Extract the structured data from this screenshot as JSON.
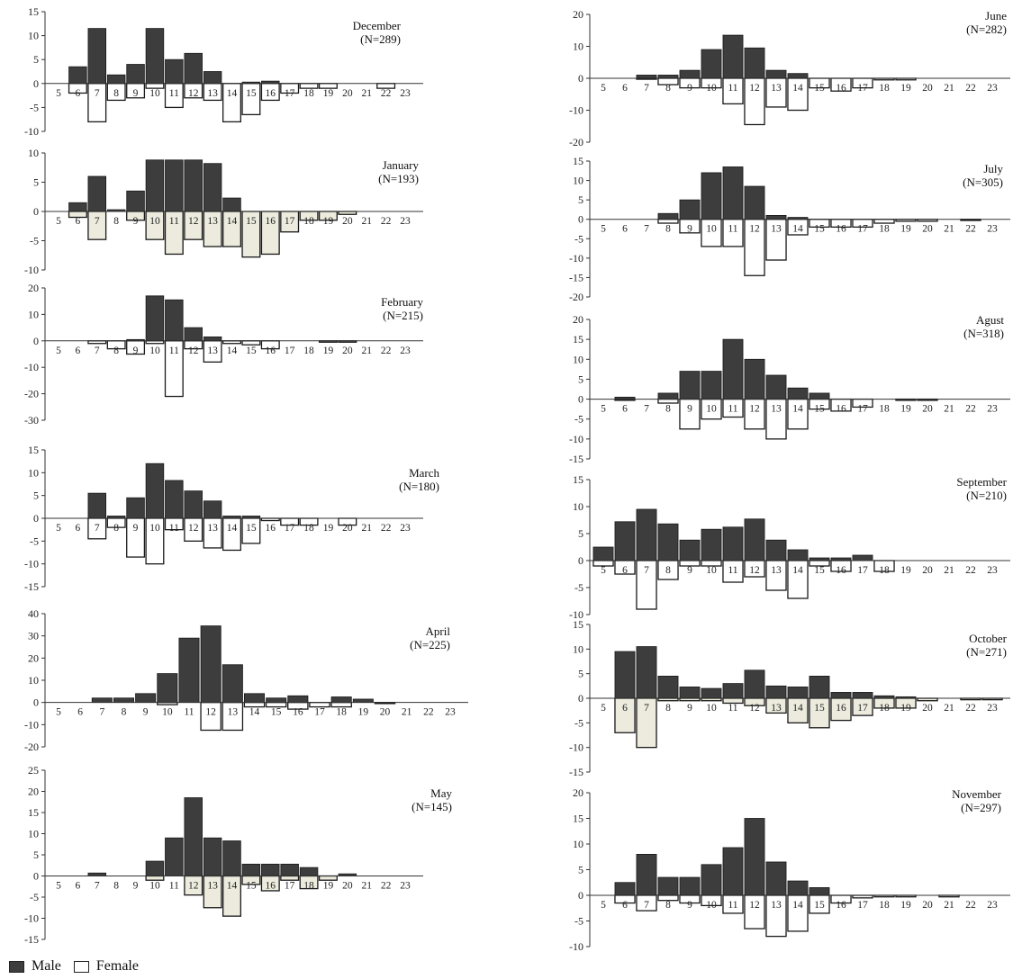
{
  "chart_data": [
    {
      "type": "bar",
      "title": "December",
      "n_label": "(N=289)",
      "categories": [
        "5",
        "6",
        "7",
        "8",
        "9",
        "10",
        "11",
        "12",
        "13",
        "14",
        "15",
        "16",
        "17",
        "18",
        "19",
        "20",
        "21",
        "22",
        "23"
      ],
      "yticks": [
        15,
        10,
        5,
        0,
        -5,
        -10
      ],
      "ylim": [
        -10,
        15
      ],
      "series": [
        {
          "name": "Male",
          "values": [
            0,
            3.5,
            11.5,
            1.8,
            4,
            11.5,
            5,
            6.3,
            2.5,
            0,
            0.3,
            0.5,
            0,
            0,
            0,
            0,
            0,
            0,
            0
          ]
        },
        {
          "name": "Female",
          "values": [
            0,
            -2,
            -8,
            -3.5,
            -3,
            -1,
            -5,
            -3,
            -3.5,
            -8,
            -6.5,
            -3.5,
            -2,
            -1,
            -1,
            0,
            0,
            -1,
            0
          ]
        }
      ]
    },
    {
      "type": "bar",
      "title": "January",
      "n_label": "(N=193)",
      "categories": [
        "5",
        "6",
        "7",
        "8",
        "9",
        "10",
        "11",
        "12",
        "13",
        "14",
        "15",
        "16",
        "17",
        "18",
        "19",
        "20",
        "21",
        "22",
        "23"
      ],
      "yticks": [
        10,
        5,
        0,
        -5,
        -10
      ],
      "ylim": [
        -10,
        10
      ],
      "series": [
        {
          "name": "Male",
          "values": [
            0,
            1.5,
            6,
            0.3,
            3.5,
            8.8,
            8.8,
            8.8,
            8.2,
            2.3,
            0,
            0,
            0,
            0,
            0,
            0,
            0,
            0,
            0
          ]
        },
        {
          "name": "Female",
          "values": [
            0,
            -1,
            -4.8,
            0,
            -1.5,
            -4.8,
            -7.3,
            -4.8,
            -6,
            -6,
            -7.8,
            -7.3,
            -3.5,
            -1.5,
            -1.5,
            -0.5,
            0,
            0,
            0
          ]
        }
      ]
    },
    {
      "type": "bar",
      "title": "February",
      "n_label": "(N=215)",
      "categories": [
        "5",
        "6",
        "7",
        "8",
        "9",
        "10",
        "11",
        "12",
        "13",
        "14",
        "15",
        "16",
        "17",
        "18",
        "19",
        "20",
        "21",
        "22",
        "23"
      ],
      "yticks": [
        20,
        10,
        0,
        -10,
        -20,
        -30
      ],
      "ylim": [
        -30,
        20
      ],
      "series": [
        {
          "name": "Male",
          "values": [
            0,
            0,
            0,
            0,
            0.5,
            17,
            15.5,
            5,
            1.5,
            0,
            0,
            0,
            0,
            0,
            0,
            0,
            0,
            0,
            0
          ]
        },
        {
          "name": "Female",
          "values": [
            0,
            0,
            -1,
            -3,
            -5,
            -1,
            -21,
            -3,
            -8,
            -1,
            -1.5,
            -3,
            0,
            0,
            -0.5,
            -0.5,
            0,
            0,
            0
          ]
        }
      ]
    },
    {
      "type": "bar",
      "title": "March",
      "n_label": "(N=180)",
      "categories": [
        "5",
        "6",
        "7",
        "8",
        "9",
        "10",
        "11",
        "12",
        "13",
        "14",
        "15",
        "16",
        "17",
        "18",
        "19",
        "20",
        "21",
        "22",
        "23"
      ],
      "yticks": [
        15,
        10,
        5,
        0,
        -5,
        -10,
        -15
      ],
      "ylim": [
        -15,
        15
      ],
      "series": [
        {
          "name": "Male",
          "values": [
            0,
            0,
            5.5,
            0.5,
            4.5,
            12,
            8.3,
            6,
            3.8,
            0.5,
            0.5,
            0,
            0,
            0,
            0,
            0,
            0,
            0,
            0
          ]
        },
        {
          "name": "Female",
          "values": [
            0,
            0,
            -4.5,
            -2,
            -8.5,
            -10,
            -2.5,
            -5,
            -6.5,
            -7,
            -5.5,
            -0.5,
            -1.5,
            -1.5,
            0,
            -1.5,
            0,
            0,
            0
          ]
        }
      ]
    },
    {
      "type": "bar",
      "title": "April",
      "n_label": "(N=225)",
      "categories": [
        "5",
        "6",
        "7",
        "8",
        "9",
        "10",
        "11",
        "12",
        "13",
        "14",
        "15",
        "16",
        "17",
        "18",
        "19",
        "20",
        "21",
        "22",
        "23"
      ],
      "yticks": [
        40,
        30,
        20,
        10,
        0,
        -10,
        -20
      ],
      "ylim": [
        -20,
        40
      ],
      "series": [
        {
          "name": "Male",
          "values": [
            0,
            0,
            2,
            2,
            4,
            13,
            29,
            34.5,
            17,
            4,
            2,
            3,
            0,
            2.5,
            1.5,
            0,
            0,
            0,
            0
          ]
        },
        {
          "name": "Female",
          "values": [
            0,
            0,
            0,
            0,
            0,
            -1,
            0,
            -12.5,
            -12.5,
            -2,
            -2,
            -3,
            -2,
            -2,
            0,
            -0.5,
            0,
            0,
            0
          ]
        }
      ]
    },
    {
      "type": "bar",
      "title": "May",
      "n_label": "(N=145)",
      "categories": [
        "5",
        "6",
        "7",
        "8",
        "9",
        "10",
        "11",
        "12",
        "13",
        "14",
        "15",
        "16",
        "17",
        "18",
        "19",
        "20",
        "21",
        "22",
        "23"
      ],
      "yticks": [
        25,
        20,
        15,
        10,
        5,
        0,
        -5,
        -10,
        -15
      ],
      "ylim": [
        -15,
        25
      ],
      "series": [
        {
          "name": "Male",
          "values": [
            0,
            0,
            0.7,
            0,
            0,
            3.5,
            9,
            18.5,
            9,
            8.3,
            2.8,
            2.8,
            2.8,
            2,
            0,
            0.5,
            0,
            0,
            0
          ]
        },
        {
          "name": "Female",
          "values": [
            0,
            0,
            0,
            0,
            0,
            -1,
            0,
            -4.5,
            -7.5,
            -9.5,
            -2,
            -3.5,
            -1,
            -3,
            -1,
            0,
            0,
            0,
            0
          ]
        }
      ]
    },
    {
      "type": "bar",
      "title": "June",
      "n_label": "(N=282)",
      "categories": [
        "5",
        "6",
        "7",
        "8",
        "9",
        "10",
        "11",
        "12",
        "13",
        "14",
        "15",
        "16",
        "17",
        "18",
        "19",
        "20",
        "21",
        "22",
        "23"
      ],
      "yticks": [
        20,
        10,
        0,
        -10,
        -20
      ],
      "ylim": [
        -20,
        20
      ],
      "series": [
        {
          "name": "Male",
          "values": [
            0,
            0,
            1,
            1,
            2.5,
            9,
            13.5,
            9.5,
            2.5,
            1.5,
            0,
            0,
            0,
            0,
            0,
            0,
            0,
            0,
            0
          ]
        },
        {
          "name": "Female",
          "values": [
            0,
            0,
            -0.3,
            -2,
            -3,
            -3,
            -8,
            -14.5,
            -9,
            -10,
            -3,
            -4,
            -3,
            -0.5,
            -0.5,
            0,
            0,
            0,
            0
          ]
        }
      ]
    },
    {
      "type": "bar",
      "title": "July",
      "n_label": "(N=305)",
      "categories": [
        "5",
        "6",
        "7",
        "8",
        "9",
        "10",
        "11",
        "12",
        "13",
        "14",
        "15",
        "16",
        "17",
        "18",
        "19",
        "20",
        "21",
        "22",
        "23"
      ],
      "yticks": [
        15,
        10,
        5,
        0,
        -5,
        -10,
        -15,
        -20
      ],
      "ylim": [
        -20,
        15
      ],
      "series": [
        {
          "name": "Male",
          "values": [
            0,
            0,
            0,
            1.5,
            5,
            12,
            13.5,
            8.5,
            1,
            0.5,
            0,
            0,
            0,
            0,
            0,
            0,
            0,
            0,
            0
          ]
        },
        {
          "name": "Female",
          "values": [
            0,
            0,
            0,
            -1,
            -3.5,
            -7,
            -7,
            -14.5,
            -10.5,
            -4,
            -2,
            -2,
            -2,
            -1,
            -0.5,
            -0.5,
            0,
            -0.3,
            0
          ]
        }
      ]
    },
    {
      "type": "bar",
      "title": "Agust",
      "n_label": "(N=318)",
      "categories": [
        "5",
        "6",
        "7",
        "8",
        "9",
        "10",
        "11",
        "12",
        "13",
        "14",
        "15",
        "16",
        "17",
        "18",
        "19",
        "20",
        "21",
        "22",
        "23"
      ],
      "yticks": [
        20,
        15,
        10,
        5,
        0,
        -5,
        -10,
        -15
      ],
      "ylim": [
        -15,
        20
      ],
      "series": [
        {
          "name": "Male",
          "values": [
            0,
            0.5,
            0,
            1.5,
            7,
            7,
            15,
            10,
            6,
            2.8,
            1.5,
            0,
            0,
            0,
            0,
            0,
            0,
            0,
            0
          ]
        },
        {
          "name": "Female",
          "values": [
            0,
            -0.3,
            0,
            -1,
            -7.5,
            -5,
            -4.5,
            -7.5,
            -10,
            -7.5,
            -2.5,
            -3,
            -2,
            0,
            -0.3,
            -0.3,
            0,
            0,
            0
          ]
        }
      ]
    },
    {
      "type": "bar",
      "title": "September",
      "n_label": "(N=210)",
      "categories": [
        "5",
        "6",
        "7",
        "8",
        "9",
        "10",
        "11",
        "12",
        "13",
        "14",
        "15",
        "16",
        "17",
        "18",
        "19",
        "20",
        "21",
        "22",
        "23"
      ],
      "yticks": [
        15,
        10,
        5,
        0,
        -5,
        -10
      ],
      "ylim": [
        -10,
        15
      ],
      "series": [
        {
          "name": "Male",
          "values": [
            2.5,
            7.2,
            9.5,
            6.8,
            3.8,
            5.8,
            6.2,
            7.7,
            3.8,
            2,
            0.5,
            0.5,
            1,
            0,
            0,
            0,
            0,
            0,
            0
          ]
        },
        {
          "name": "Female",
          "values": [
            -1,
            -2.5,
            -9,
            -3.5,
            -1,
            -1,
            -4,
            -3,
            -5.5,
            -7,
            -1,
            -2,
            0,
            -2,
            0,
            0,
            0,
            0,
            0
          ]
        }
      ]
    },
    {
      "type": "bar",
      "title": "October",
      "n_label": "(N=271)",
      "categories": [
        "5",
        "6",
        "7",
        "8",
        "9",
        "10",
        "11",
        "12",
        "13",
        "14",
        "15",
        "16",
        "17",
        "18",
        "19",
        "20",
        "21",
        "22",
        "23"
      ],
      "yticks": [
        15,
        10,
        5,
        0,
        -5,
        -10,
        -15
      ],
      "ylim": [
        -15,
        15
      ],
      "series": [
        {
          "name": "Male",
          "values": [
            0,
            9.5,
            10.5,
            4.5,
            2.3,
            2,
            3,
            5.7,
            2.5,
            2.3,
            4.5,
            1.2,
            1.2,
            0.5,
            0.3,
            0,
            0,
            0,
            0
          ]
        },
        {
          "name": "Female",
          "values": [
            0,
            -7,
            -10,
            -0.5,
            -0.5,
            -0.5,
            -1,
            -1.5,
            -3,
            -5,
            -6,
            -4.5,
            -3.5,
            -2,
            -2,
            -0.5,
            0,
            -0.3,
            -0.3
          ]
        }
      ]
    },
    {
      "type": "bar",
      "title": "November",
      "n_label": "(N=297)",
      "categories": [
        "5",
        "6",
        "7",
        "8",
        "9",
        "10",
        "11",
        "12",
        "13",
        "14",
        "15",
        "16",
        "17",
        "18",
        "19",
        "20",
        "21",
        "22",
        "23"
      ],
      "yticks": [
        20,
        15,
        10,
        5,
        0,
        -5,
        -10
      ],
      "ylim": [
        -10,
        20
      ],
      "series": [
        {
          "name": "Male",
          "values": [
            0,
            2.5,
            8,
            3.5,
            3.5,
            6,
            9.3,
            15,
            6.5,
            2.8,
            1.5,
            0,
            0,
            0,
            0,
            0,
            0,
            0,
            0
          ]
        },
        {
          "name": "Female",
          "values": [
            0,
            -1.5,
            -3,
            -1,
            -1.5,
            -2,
            -3.5,
            -6.5,
            -8,
            -7,
            -3.5,
            -1.5,
            -0.5,
            -0.3,
            -0.3,
            0,
            -0.3,
            0,
            0
          ]
        }
      ]
    }
  ],
  "legend": {
    "male_label": "Male",
    "female_label": "Female"
  },
  "colors": {
    "male_fill": "#3d3d3d",
    "female_fill": "#ffffff",
    "female_fill_alt": "#ecebdd",
    "axis": "#333333"
  }
}
